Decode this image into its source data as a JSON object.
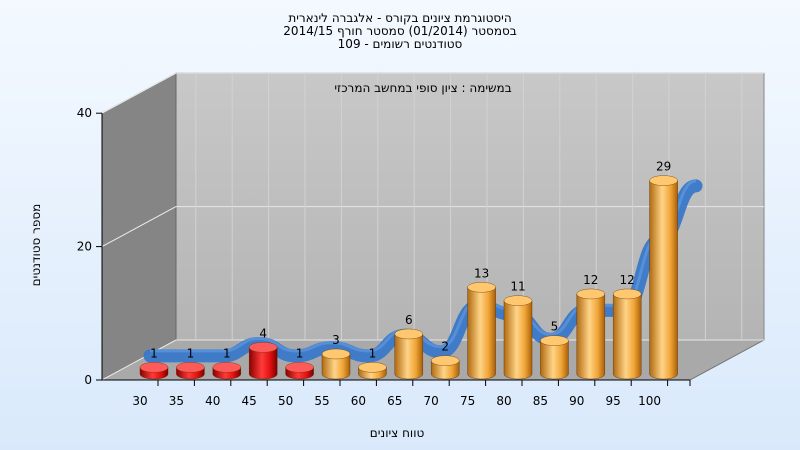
{
  "chart_data": {
    "type": "bar",
    "title_lines": [
      "היסטוגרמת ציונים בקורס - אלגברה לינארית",
      "בסמסטר  (01/2014)  סמסטר חורף 2014/15",
      "סטודנטים רשומים - 109"
    ],
    "annotation": "במשימה : ציון סופי במחשב המרכזי",
    "xlabel": "טווח ציונים",
    "ylabel": "מספר סטודנטים",
    "categories": [
      "30",
      "35",
      "40",
      "45",
      "50",
      "55",
      "60",
      "65",
      "70",
      "75",
      "80",
      "85",
      "90",
      "95",
      "100"
    ],
    "values": [
      1,
      1,
      1,
      4,
      1,
      3,
      1,
      6,
      2,
      13,
      11,
      5,
      12,
      12,
      29
    ],
    "value_labels": [
      "1",
      "1",
      "1",
      "4",
      "1",
      "3",
      "1",
      "6",
      "2",
      "13",
      "11",
      "5",
      "12",
      "12",
      "29"
    ],
    "colors": [
      "red",
      "red",
      "red",
      "red",
      "red",
      "orange",
      "orange",
      "orange",
      "orange",
      "orange",
      "orange",
      "orange",
      "orange",
      "orange",
      "orange"
    ],
    "yticks": [
      "0",
      "20",
      "40"
    ],
    "ylim": [
      0,
      40
    ],
    "trend_line": true,
    "grid": true,
    "palette": {
      "red": "#e01010",
      "orange": "#f0a436",
      "trend": "#3a78c8"
    }
  }
}
